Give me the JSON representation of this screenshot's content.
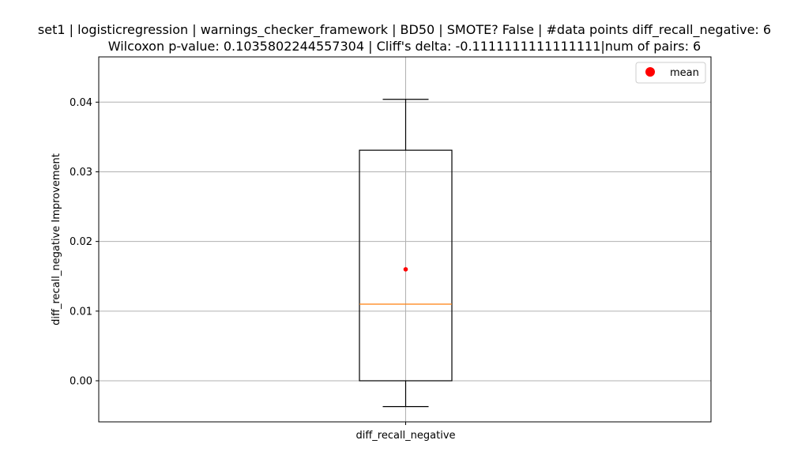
{
  "chart_data": {
    "type": "box",
    "title_line1": "set1 | logisticregression | warnings_checker_framework | BD50 | SMOTE? False | #data points diff_recall_negative: 6",
    "title_line2": "Wilcoxon p-value: 0.1035802244557304 | Cliff's delta: -0.1111111111111111|num of pairs: 6",
    "xlabel": "",
    "ylabel": "diff_recall_negative Improvement",
    "categories": [
      "diff_recall_negative"
    ],
    "ylim": [
      -0.0059,
      0.0465
    ],
    "yticks": [
      0.0,
      0.01,
      0.02,
      0.03,
      0.04
    ],
    "ytick_labels": [
      "0.00",
      "0.01",
      "0.02",
      "0.03",
      "0.04"
    ],
    "grid": true,
    "legend": {
      "position": "top-right",
      "entries": [
        "mean"
      ]
    },
    "boxes": [
      {
        "name": "diff_recall_negative",
        "whisker_low": -0.0037,
        "q1": 0.0,
        "median": 0.011,
        "q3": 0.0331,
        "whisker_high": 0.0404,
        "mean": 0.016
      }
    ],
    "colors": {
      "box": "#000000",
      "median": "#ff7f0e",
      "mean": "#ff0000",
      "grid": "#b0b0b0"
    }
  }
}
